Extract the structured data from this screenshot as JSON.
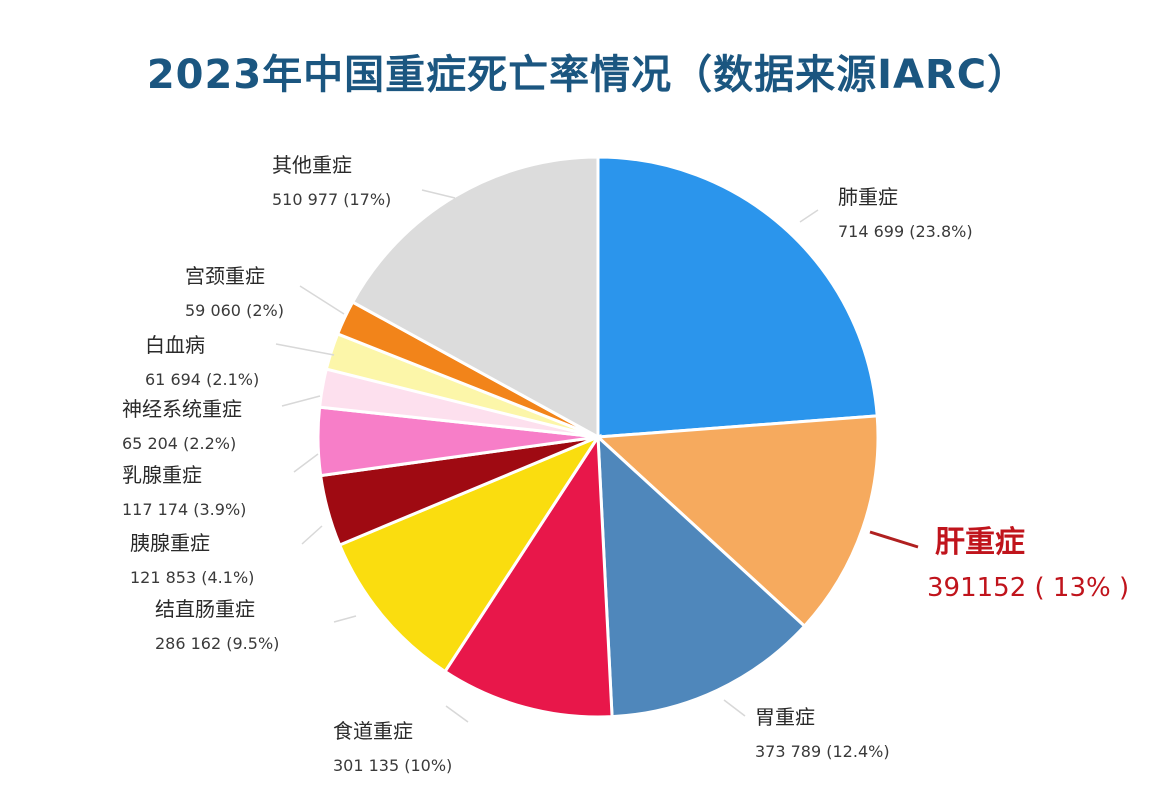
{
  "chart_data": {
    "type": "pie",
    "title": "2023年中国重症死亡率情况（数据来源IARC）",
    "slices": [
      {
        "name": "肺重症",
        "value": 714699,
        "value_text": "714 699",
        "pct_text": "(23.8%)",
        "percent": 23.8,
        "color": "#2b95ec"
      },
      {
        "name": "肝重症",
        "value": 391152,
        "value_text": "391152",
        "pct_text": "( 13% )",
        "percent": 13,
        "color": "#f6aa5e",
        "highlight": true
      },
      {
        "name": "胃重症",
        "value": 373789,
        "value_text": "373 789",
        "pct_text": "(12.4%)",
        "percent": 12.4,
        "color": "#4f87bb"
      },
      {
        "name": "食道重症",
        "value": 301135,
        "value_text": "301 135",
        "pct_text": "(10%)",
        "percent": 10,
        "color": "#e8174a"
      },
      {
        "name": "结直肠重症",
        "value": 286162,
        "value_text": "286 162",
        "pct_text": "(9.5%)",
        "percent": 9.5,
        "color": "#fadd0f"
      },
      {
        "name": "胰腺重症",
        "value": 121853,
        "value_text": "121 853",
        "pct_text": "(4.1%)",
        "percent": 4.1,
        "color": "#9f0a12"
      },
      {
        "name": "乳腺重症",
        "value": 117174,
        "value_text": "117 174",
        "pct_text": "(3.9%)",
        "percent": 3.9,
        "color": "#f77ec8"
      },
      {
        "name": "神经系统重症",
        "value": 65204,
        "value_text": "65 204",
        "pct_text": "(2.2%)",
        "percent": 2.2,
        "color": "#fde0ee"
      },
      {
        "name": "白血病",
        "value": 61694,
        "value_text": "61 694",
        "pct_text": "(2.1%)",
        "percent": 2.1,
        "color": "#fcf6a9"
      },
      {
        "name": "宫颈重症",
        "value": 59060,
        "value_text": "59 060",
        "pct_text": "(2%)",
        "percent": 2,
        "color": "#f2841a"
      },
      {
        "name": "其他重症",
        "value": 510977,
        "value_text": "510 977",
        "pct_text": "(17%)",
        "percent": 17,
        "color": "#dcdcdc"
      }
    ]
  }
}
